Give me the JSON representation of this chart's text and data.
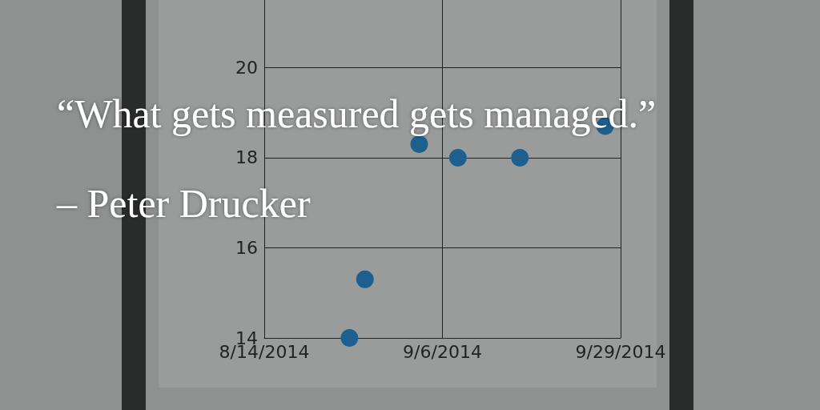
{
  "chart_data": {
    "type": "scatter",
    "title": "“What gets measured gets managed.”",
    "subtitle": "– Peter Drucker",
    "x": [
      "2014-08-25",
      "2014-08-27",
      "2014-09-03",
      "2014-09-08",
      "2014-09-16",
      "2014-09-27"
    ],
    "series": [
      {
        "color": "#1d5f8e",
        "values": [
          14,
          15.3,
          18.3,
          18,
          18,
          18.7
        ]
      }
    ],
    "xlim": [
      "2014-08-14",
      "2014-09-29"
    ],
    "xticks": [
      {
        "value": "2014-08-14",
        "label": "8/14/2014"
      },
      {
        "value": "2014-09-06",
        "label": "9/6/2014"
      },
      {
        "value": "2014-09-29",
        "label": "9/29/2014"
      }
    ],
    "ylim": [
      14,
      21.5
    ],
    "yticks": [
      14,
      16,
      18,
      20
    ],
    "grid": true,
    "marker": "circle"
  }
}
